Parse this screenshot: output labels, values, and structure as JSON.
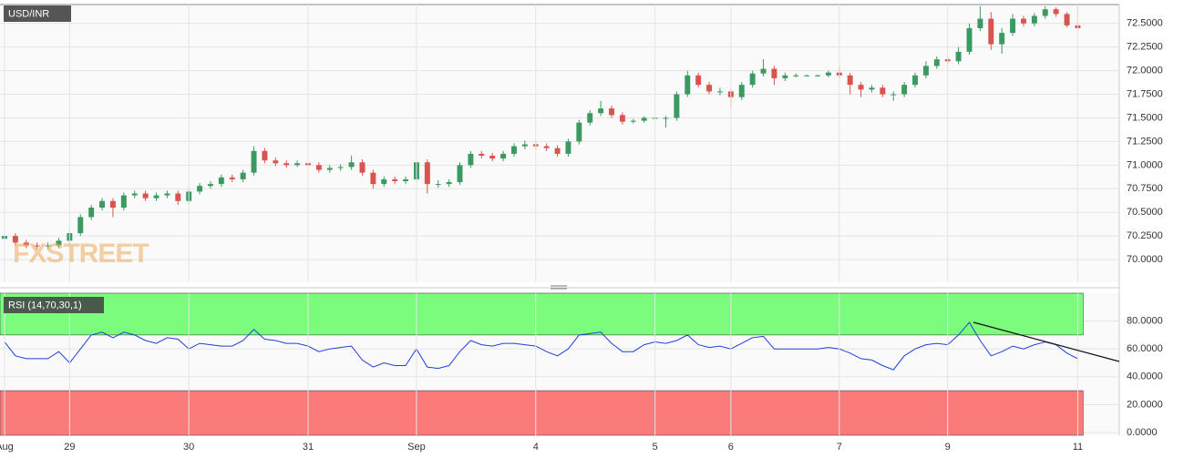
{
  "chart_data": [
    {
      "type": "candlestick",
      "title": "USD/INR",
      "watermark": "FXSTREET",
      "up_color": "#3a9a62",
      "down_color": "#d9534f",
      "xlim": [
        0,
        103
      ],
      "ylim": [
        69.76,
        72.7
      ],
      "yticks": [
        {
          "value": 70,
          "label": "70.0000"
        },
        {
          "value": 70.25,
          "label": "70.2500"
        },
        {
          "value": 70.5,
          "label": "70.5000"
        },
        {
          "value": 70.75,
          "label": "70.7500"
        },
        {
          "value": 71,
          "label": "71.0000"
        },
        {
          "value": 71.25,
          "label": "71.2500"
        },
        {
          "value": 71.5,
          "label": "71.5000"
        },
        {
          "value": 71.75,
          "label": "71.7500"
        },
        {
          "value": 72,
          "label": "72.0000"
        },
        {
          "value": 72.25,
          "label": "72.2500"
        },
        {
          "value": 72.5,
          "label": "72.5000"
        }
      ],
      "open": [
        70.22,
        70.25,
        70.18,
        70.15,
        70.14,
        70.15,
        70.2,
        70.28,
        70.45,
        70.55,
        70.62,
        70.55,
        70.68,
        70.7,
        70.65,
        70.68,
        70.7,
        70.62,
        70.72,
        70.78,
        70.8,
        70.87,
        70.85,
        70.92,
        71.15,
        71.05,
        71.02,
        71.0,
        71.02,
        71.0,
        70.95,
        70.97,
        70.98,
        71.03,
        70.92,
        70.8,
        70.85,
        70.83,
        70.85,
        71.03,
        70.8,
        70.8,
        70.82,
        71.0,
        71.12,
        71.1,
        71.07,
        71.12,
        71.2,
        71.22,
        71.2,
        71.18,
        71.12,
        71.25,
        71.45,
        71.55,
        71.6,
        71.53,
        71.46,
        71.47,
        71.5,
        71.5,
        71.5,
        71.75,
        71.95,
        71.85,
        71.78,
        71.78,
        71.72,
        71.85,
        71.97,
        72.02,
        71.92,
        71.95,
        71.95,
        71.95,
        71.95,
        71.98,
        71.95,
        71.85,
        71.8,
        71.82,
        71.75,
        71.75,
        71.85,
        71.95,
        72.05,
        72.12,
        72.1,
        72.2,
        72.45,
        72.55,
        72.28,
        72.4,
        72.55,
        72.5,
        72.58,
        72.65,
        72.6,
        72.48
      ],
      "high": [
        70.28,
        70.28,
        70.21,
        70.18,
        70.18,
        70.23,
        70.31,
        70.48,
        70.58,
        70.65,
        70.65,
        70.71,
        70.73,
        70.73,
        70.71,
        70.73,
        70.73,
        70.75,
        70.81,
        70.83,
        70.9,
        70.9,
        70.95,
        71.2,
        71.18,
        71.08,
        71.05,
        71.05,
        71.25,
        71.03,
        71.0,
        71.01,
        71.1,
        71.06,
        70.95,
        70.88,
        70.88,
        70.88,
        71.04,
        71.06,
        70.84,
        70.85,
        71.03,
        71.15,
        71.15,
        71.13,
        71.15,
        71.23,
        71.26,
        71.25,
        71.23,
        71.21,
        71.28,
        71.48,
        71.58,
        71.68,
        71.63,
        71.56,
        71.49,
        71.52,
        71.51,
        71.52,
        71.78,
        72.0,
        71.98,
        71.88,
        71.82,
        71.81,
        71.88,
        72.0,
        72.12,
        72.05,
        71.98,
        71.97,
        71.96,
        71.96,
        72.0,
        72.05,
        71.98,
        71.88,
        71.85,
        71.85,
        71.78,
        71.88,
        71.98,
        72.1,
        72.15,
        72.15,
        72.25,
        72.5,
        72.68,
        72.62,
        72.45,
        72.6,
        72.58,
        72.61,
        72.68,
        72.67,
        72.62,
        72.68
      ],
      "low": [
        70.19,
        70.15,
        70.12,
        70.11,
        70.11,
        70.12,
        70.17,
        70.25,
        70.42,
        70.52,
        70.45,
        70.52,
        70.65,
        70.62,
        70.62,
        70.65,
        70.58,
        70.59,
        70.69,
        70.75,
        70.77,
        70.82,
        70.82,
        70.89,
        71.02,
        70.99,
        70.97,
        70.98,
        70.97,
        70.92,
        70.92,
        70.94,
        70.95,
        70.89,
        70.75,
        70.77,
        70.8,
        70.8,
        70.82,
        70.7,
        70.76,
        70.77,
        70.79,
        70.97,
        71.07,
        71.04,
        71.04,
        71.09,
        71.17,
        71.17,
        71.15,
        71.09,
        71.09,
        71.22,
        71.42,
        71.52,
        71.5,
        71.43,
        71.44,
        71.45,
        71.49,
        71.4,
        71.47,
        71.72,
        71.82,
        71.75,
        71.74,
        71.6,
        71.69,
        71.82,
        71.94,
        71.85,
        71.89,
        71.93,
        71.94,
        71.94,
        71.93,
        71.92,
        71.75,
        71.72,
        71.77,
        71.72,
        71.68,
        71.72,
        71.82,
        71.92,
        72.02,
        72.07,
        72.07,
        72.17,
        72.42,
        72.22,
        72.18,
        72.37,
        72.47,
        72.47,
        72.55,
        72.57,
        72.46,
        72.42
      ],
      "close": [
        70.25,
        70.18,
        70.15,
        70.14,
        70.15,
        70.2,
        70.28,
        70.45,
        70.55,
        70.62,
        70.55,
        70.68,
        70.7,
        70.65,
        70.68,
        70.7,
        70.62,
        70.72,
        70.78,
        70.8,
        70.87,
        70.85,
        70.92,
        71.15,
        71.05,
        71.02,
        71.0,
        71.02,
        71.0,
        70.95,
        70.97,
        70.98,
        71.03,
        70.92,
        70.8,
        70.85,
        70.83,
        70.85,
        71.03,
        70.8,
        70.8,
        70.82,
        71.0,
        71.12,
        71.1,
        71.07,
        71.12,
        71.2,
        71.22,
        71.2,
        71.18,
        71.12,
        71.25,
        71.45,
        71.55,
        71.6,
        71.53,
        71.46,
        71.47,
        71.5,
        71.5,
        71.5,
        71.75,
        71.95,
        71.85,
        71.78,
        71.78,
        71.72,
        71.85,
        71.97,
        72.02,
        71.92,
        71.95,
        71.95,
        71.95,
        71.95,
        71.98,
        71.95,
        71.85,
        71.8,
        71.82,
        71.75,
        71.75,
        71.85,
        71.95,
        72.05,
        72.12,
        72.1,
        72.2,
        72.45,
        72.55,
        72.28,
        72.4,
        72.55,
        72.5,
        72.58,
        72.65,
        72.6,
        72.48,
        72.45
      ]
    },
    {
      "type": "line",
      "title": "RSI (14,70,30,1)",
      "color": "#1f3fd8",
      "overbought": 70,
      "oversold": 30,
      "overbought_color": "#7cfc7c",
      "oversold_color": "#fb7b7b",
      "xlim": [
        0,
        103
      ],
      "ylim": [
        -2,
        100
      ],
      "yticks": [
        {
          "value": 0,
          "label": "0.0000"
        },
        {
          "value": 20,
          "label": "20.0000"
        },
        {
          "value": 40,
          "label": "40.0000"
        },
        {
          "value": 60,
          "label": "60.0000"
        },
        {
          "value": 80,
          "label": "80.0000"
        }
      ],
      "xticks": [
        {
          "value": 0,
          "label": "Aug"
        },
        {
          "value": 6,
          "label": "29"
        },
        {
          "value": 17,
          "label": "30"
        },
        {
          "value": 28,
          "label": "31"
        },
        {
          "value": 38,
          "label": "Sep"
        },
        {
          "value": 49,
          "label": "4"
        },
        {
          "value": 60,
          "label": "5"
        },
        {
          "value": 67,
          "label": "6"
        },
        {
          "value": 77,
          "label": "7"
        },
        {
          "value": 87,
          "label": "9"
        },
        {
          "value": 99,
          "label": "11"
        }
      ],
      "values": [
        65,
        55,
        53,
        53,
        53,
        58,
        50,
        60,
        70,
        72,
        68,
        72,
        70,
        66,
        64,
        68,
        67,
        60,
        64,
        63,
        62,
        62,
        66,
        74,
        67,
        66,
        64,
        64,
        62,
        58,
        60,
        61,
        62,
        52,
        47,
        50,
        48,
        48,
        60,
        47,
        46,
        48,
        58,
        66,
        63,
        62,
        64,
        64,
        63,
        62,
        58,
        55,
        60,
        70,
        71,
        72,
        64,
        58,
        58,
        63,
        65,
        64,
        66,
        70,
        63,
        61,
        62,
        60,
        64,
        68,
        69,
        60,
        60,
        60,
        60,
        60,
        61,
        60,
        57,
        53,
        52,
        48,
        45,
        55,
        60,
        63,
        64,
        63,
        70,
        79,
        66,
        55,
        58,
        62,
        60,
        63,
        65,
        63,
        57,
        53
      ]
    }
  ]
}
